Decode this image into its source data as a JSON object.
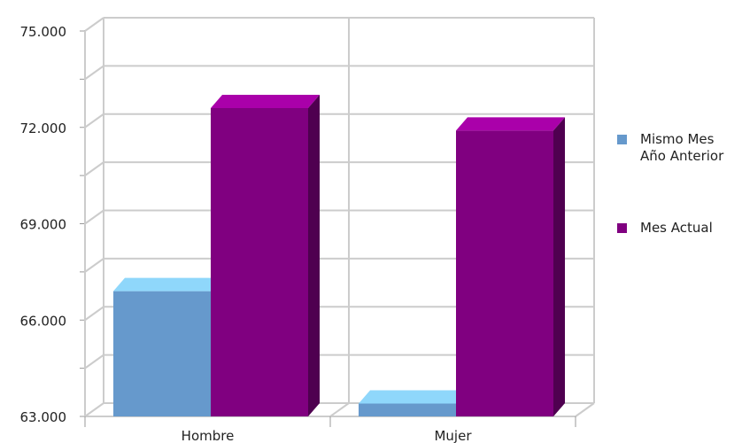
{
  "chart_data": {
    "type": "bar",
    "title": "",
    "xlabel": "",
    "ylabel": "",
    "categories": [
      "Hombre",
      "Mujer"
    ],
    "series": [
      {
        "name": "Mismo Mes Año Anterior",
        "values": [
          66900,
          63400
        ],
        "color": "#6699cc",
        "top_color": "#8fd7fb"
      },
      {
        "name": "Mes Actual",
        "values": [
          72600,
          71900
        ],
        "color": "#800080",
        "top_color": "#aa00aa",
        "side_color": "#4f0050"
      }
    ],
    "ylim": [
      63000,
      75000
    ],
    "y_ticks": [
      "63.000",
      "66.000",
      "69.000",
      "72.000",
      "75.000"
    ],
    "y_minor_step": 1500,
    "grid": true,
    "legend_position": "right"
  }
}
